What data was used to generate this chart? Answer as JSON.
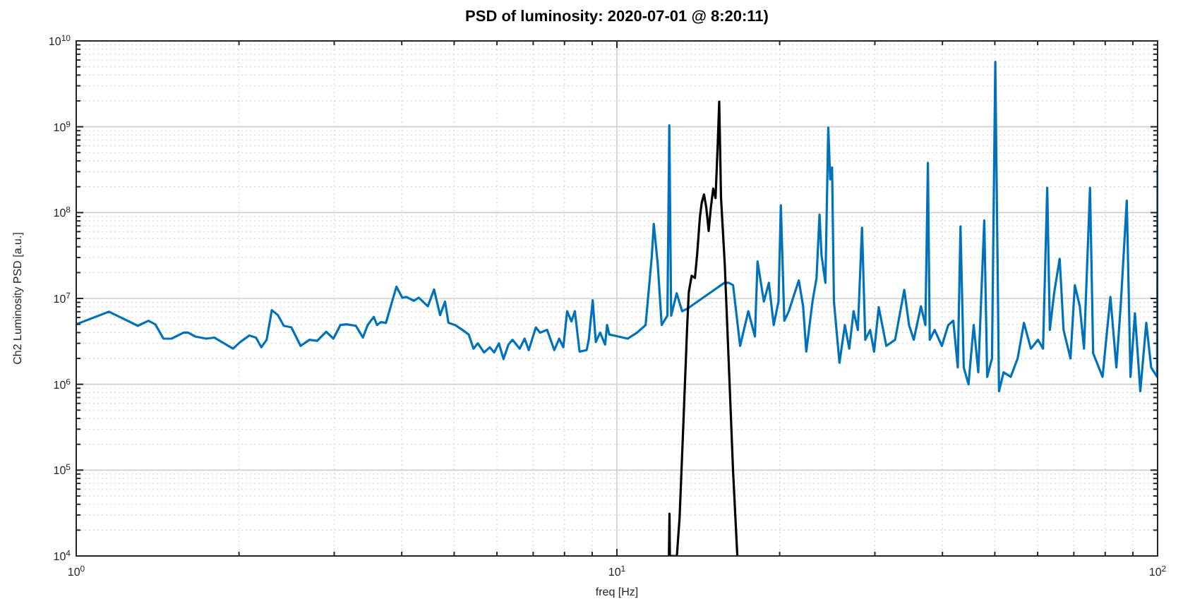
{
  "chart_data": {
    "type": "line",
    "title": "PSD of luminosity: 2020-07-01  @ 8:20:11)",
    "xlabel": "freq [Hz]",
    "ylabel": "Ch2 Luminosity PSD [a.u.]",
    "log": "xy",
    "grid": true,
    "line_style": "solid",
    "marker": "none",
    "xlim": [
      1,
      100
    ],
    "ylim": [
      10000,
      10000000000
    ],
    "xticks": [
      {
        "value": 1,
        "label": "10$^{0}$"
      },
      {
        "value": 2,
        "label": null
      },
      {
        "value": 3,
        "label": null
      },
      {
        "value": 4,
        "label": null
      },
      {
        "value": 5,
        "label": null
      },
      {
        "value": 6,
        "label": null
      },
      {
        "value": 7,
        "label": null
      },
      {
        "value": 8,
        "label": null
      },
      {
        "value": 9,
        "label": null
      },
      {
        "value": 10,
        "label": "10$^{1}$"
      },
      {
        "value": 20,
        "label": null
      },
      {
        "value": 30,
        "label": null
      },
      {
        "value": 40,
        "label": null
      },
      {
        "value": 50,
        "label": null
      },
      {
        "value": 60,
        "label": null
      },
      {
        "value": 70,
        "label": null
      },
      {
        "value": 80,
        "label": null
      },
      {
        "value": 90,
        "label": null
      },
      {
        "value": 100,
        "label": "10$^{2}$"
      }
    ],
    "yticks": [
      {
        "value": 10000.0,
        "label": "10$^{4}$"
      },
      {
        "value": 20000.0,
        "label": null
      },
      {
        "value": 30000.0,
        "label": null
      },
      {
        "value": 40000.0,
        "label": null
      },
      {
        "value": 50000.0,
        "label": null
      },
      {
        "value": 60000.0,
        "label": null
      },
      {
        "value": 70000.0,
        "label": null
      },
      {
        "value": 80000.0,
        "label": null
      },
      {
        "value": 90000.0,
        "label": null
      },
      {
        "value": 100000.0,
        "label": "10$^{5}$"
      },
      {
        "value": 200000.0,
        "label": null
      },
      {
        "value": 300000.0,
        "label": null
      },
      {
        "value": 400000.0,
        "label": null
      },
      {
        "value": 500000.0,
        "label": null
      },
      {
        "value": 600000.0,
        "label": null
      },
      {
        "value": 700000.0,
        "label": null
      },
      {
        "value": 800000.0,
        "label": null
      },
      {
        "value": 900000.0,
        "label": null
      },
      {
        "value": 1000000.0,
        "label": "10$^{6}$"
      },
      {
        "value": 2000000.0,
        "label": null
      },
      {
        "value": 3000000.0,
        "label": null
      },
      {
        "value": 4000000.0,
        "label": null
      },
      {
        "value": 5000000.0,
        "label": null
      },
      {
        "value": 6000000.0,
        "label": null
      },
      {
        "value": 7000000.0,
        "label": null
      },
      {
        "value": 8000000.0,
        "label": null
      },
      {
        "value": 9000000.0,
        "label": null
      },
      {
        "value": 10000000.0,
        "label": "10$^{7}$"
      },
      {
        "value": 20000000.0,
        "label": null
      },
      {
        "value": 30000000.0,
        "label": null
      },
      {
        "value": 40000000.0,
        "label": null
      },
      {
        "value": 50000000.0,
        "label": null
      },
      {
        "value": 60000000.0,
        "label": null
      },
      {
        "value": 70000000.0,
        "label": null
      },
      {
        "value": 80000000.0,
        "label": null
      },
      {
        "value": 90000000.0,
        "label": null
      },
      {
        "value": 100000000.0,
        "label": "10$^{8}$"
      },
      {
        "value": 200000000.0,
        "label": null
      },
      {
        "value": 300000000.0,
        "label": null
      },
      {
        "value": 400000000.0,
        "label": null
      },
      {
        "value": 500000000.0,
        "label": null
      },
      {
        "value": 600000000.0,
        "label": null
      },
      {
        "value": 700000000.0,
        "label": null
      },
      {
        "value": 800000000.0,
        "label": null
      },
      {
        "value": 900000000.0,
        "label": null
      },
      {
        "value": 1000000000.0,
        "label": "10$^{9}$"
      },
      {
        "value": 2000000000.0,
        "label": null
      },
      {
        "value": 3000000000.0,
        "label": null
      },
      {
        "value": 4000000000.0,
        "label": null
      },
      {
        "value": 5000000000.0,
        "label": null
      },
      {
        "value": 6000000000.0,
        "label": null
      },
      {
        "value": 7000000000.0,
        "label": null
      },
      {
        "value": 8000000000.0,
        "label": null
      },
      {
        "value": 9000000000.0,
        "label": null
      },
      {
        "value": 10000000000.0,
        "label": "10$^{10}$"
      }
    ],
    "series": [
      {
        "color": "#0072bd",
        "x": [
          1,
          1.15,
          1.3,
          1.36,
          1.4,
          1.45,
          1.5,
          1.58,
          1.61,
          1.66,
          1.74,
          1.8,
          1.86,
          1.95,
          2.01,
          2.09,
          2.15,
          2.2,
          2.25,
          2.3,
          2.36,
          2.42,
          2.5,
          2.6,
          2.7,
          2.79,
          2.9,
          2.99,
          3.08,
          3.16,
          3.29,
          3.39,
          3.46,
          3.55,
          3.6,
          3.66,
          3.74,
          3.91,
          4.01,
          4.08,
          4.21,
          4.3,
          4.47,
          4.59,
          4.71,
          4.81,
          4.88,
          5.02,
          5.18,
          5.32,
          5.43,
          5.53,
          5.68,
          5.82,
          5.93,
          6.05,
          6.17,
          6.3,
          6.41,
          6.61,
          6.75,
          6.87,
          7.08,
          7.21,
          7.43,
          7.66,
          7.82,
          7.96,
          8.09,
          8.24,
          8.36,
          8.53,
          8.79,
          8.87,
          9.02,
          9.14,
          9.31,
          9.51,
          9.59,
          9.68,
          10.07,
          10.47,
          10.9,
          11.3,
          11.6,
          11.7,
          11.9,
          12.1,
          12.4,
          12.5,
          12.6,
          12.9,
          13.2,
          13.5,
          15.8,
          16.1,
          16.4,
          16.9,
          17.5,
          18,
          18.2,
          18.7,
          19.1,
          19.5,
          19.9,
          20.1,
          20.4,
          20.8,
          21.2,
          21.7,
          22.1,
          22.4,
          23,
          23.4,
          23.7,
          23.9,
          24.3,
          24.6,
          24.8,
          25,
          25.2,
          25.8,
          26.4,
          26.9,
          27.4,
          27.9,
          28.4,
          28.8,
          29.4,
          29.9,
          30.5,
          31.5,
          32.7,
          34,
          34.7,
          35.4,
          36.5,
          37.2,
          37.6,
          37.9,
          38.7,
          39.9,
          41,
          41.9,
          42.7,
          43.2,
          43.8,
          44.7,
          45.7,
          46.6,
          47.8,
          48.4,
          49.4,
          50.1,
          50.9,
          51.9,
          53.5,
          55.1,
          56.6,
          58.3,
          60.1,
          61.4,
          62.5,
          63.2,
          64.4,
          65.9,
          67,
          69,
          70.3,
          71.8,
          73.1,
          75,
          76,
          79.1,
          81.8,
          83.9,
          85.5,
          87.7,
          89.1,
          90.8,
          92.9,
          95.3,
          97.3,
          99.8,
          100
        ],
        "values": [
          5000000.0,
          7000000.0,
          4800000.0,
          5500000.0,
          5000000.0,
          3400000.0,
          3400000.0,
          4000000.0,
          4000000.0,
          3600000.0,
          3400000.0,
          3500000.0,
          3100000.0,
          2600000.0,
          3100000.0,
          3700000.0,
          3500000.0,
          2700000.0,
          3300000.0,
          7300000.0,
          6400000.0,
          4800000.0,
          4600000.0,
          2800000.0,
          3300000.0,
          3200000.0,
          4100000.0,
          3400000.0,
          4900000.0,
          5000000.0,
          4800000.0,
          3500000.0,
          4900000.0,
          6100000.0,
          4900000.0,
          5300000.0,
          5200000.0,
          13700000.0,
          10200000.0,
          10400000.0,
          9400000.0,
          10200000.0,
          8100000.0,
          12700000.0,
          6400000.0,
          9200000.0,
          5200000.0,
          4900000.0,
          4300000.0,
          3800000.0,
          2600000.0,
          3000000.0,
          2350000.0,
          2700000.0,
          2350000.0,
          3000000.0,
          1970000.0,
          2900000.0,
          3300000.0,
          2600000.0,
          3400000.0,
          2500000.0,
          4600000.0,
          4000000.0,
          4300000.0,
          2500000.0,
          3400000.0,
          2700000.0,
          7100000.0,
          5400000.0,
          7100000.0,
          2400000.0,
          2500000.0,
          3300000.0,
          9500000.0,
          3100000.0,
          4000000.0,
          2900000.0,
          4900000.0,
          3800000.0,
          3600000.0,
          3400000.0,
          4000000.0,
          4900000.0,
          30500000.0,
          74000000.0,
          25000000.0,
          4900000.0,
          6300000.0,
          1040000000.0,
          6300000.0,
          11500000.0,
          7100000.0,
          7600000.0,
          15200000.0,
          15200000.0,
          14300000.0,
          2800000.0,
          7100000.0,
          3600000.0,
          27000000.0,
          9200000.0,
          15200000.0,
          4900000.0,
          9200000.0,
          122000000.0,
          5500000.0,
          7100000.0,
          10400000.0,
          16200000.0,
          8100000.0,
          2400000.0,
          9200000.0,
          17300000.0,
          95000000.0,
          32000000.0,
          15200000.0,
          980000000.0,
          244000000.0,
          335000000.0,
          9200000.0,
          1780000.0,
          4900000.0,
          2600000.0,
          7100000.0,
          4300000.0,
          67000000.0,
          3300000.0,
          4300000.0,
          2400000.0,
          7900000.0,
          2800000.0,
          3300000.0,
          12600000.0,
          4900000.0,
          3300000.0,
          8100000.0,
          4900000.0,
          380000000.0,
          3300000.0,
          4300000.0,
          2800000.0,
          4900000.0,
          5500000.0,
          1570000.0,
          69000000.0,
          1570000.0,
          1000000.0,
          4900000.0,
          1380000.0,
          81000000.0,
          1220000.0,
          2000000.0,
          5700000000.0,
          830000.0,
          1380000.0,
          1220000.0,
          2000000.0,
          5200000.0,
          2600000.0,
          3300000.0,
          2600000.0,
          195000000.0,
          4300000.0,
          11800000.0,
          29000000.0,
          4300000.0,
          2000000.0,
          14300000.0,
          8100000.0,
          2600000.0,
          195000000.0,
          2300000.0,
          1220000.0,
          10400000.0,
          1570000.0,
          8600000.0,
          138000000.0,
          1220000.0,
          6700000.0,
          830000.0,
          5200000.0,
          1570000.0,
          1220000.0,
          360000000.0
        ]
      },
      {
        "color": "#000000",
        "x": [
          12.48,
          12.51,
          12.53,
          12.91,
          13.06,
          13.27,
          13.48,
          13.58,
          13.75,
          13.94,
          14.07,
          14.24,
          14.35,
          14.49,
          14.63,
          14.78,
          14.92,
          15.07,
          15.22,
          15.37,
          15.46,
          15.58,
          15.83,
          16.14,
          16.4,
          16.7
        ],
        "values": [
          10000.0,
          31000.0,
          10000.0,
          10000.0,
          28000.0,
          340000.0,
          4300000.0,
          11800000.0,
          18400000.0,
          17300000.0,
          32000000.0,
          89000000.0,
          130000000.0,
          163000000.0,
          115000000.0,
          61000000.0,
          115000000.0,
          190000000.0,
          148000000.0,
          670000000.0,
          1960000000.0,
          148000000.0,
          25000000.0,
          1220000.0,
          97000.0,
          10000.0
        ]
      }
    ]
  }
}
